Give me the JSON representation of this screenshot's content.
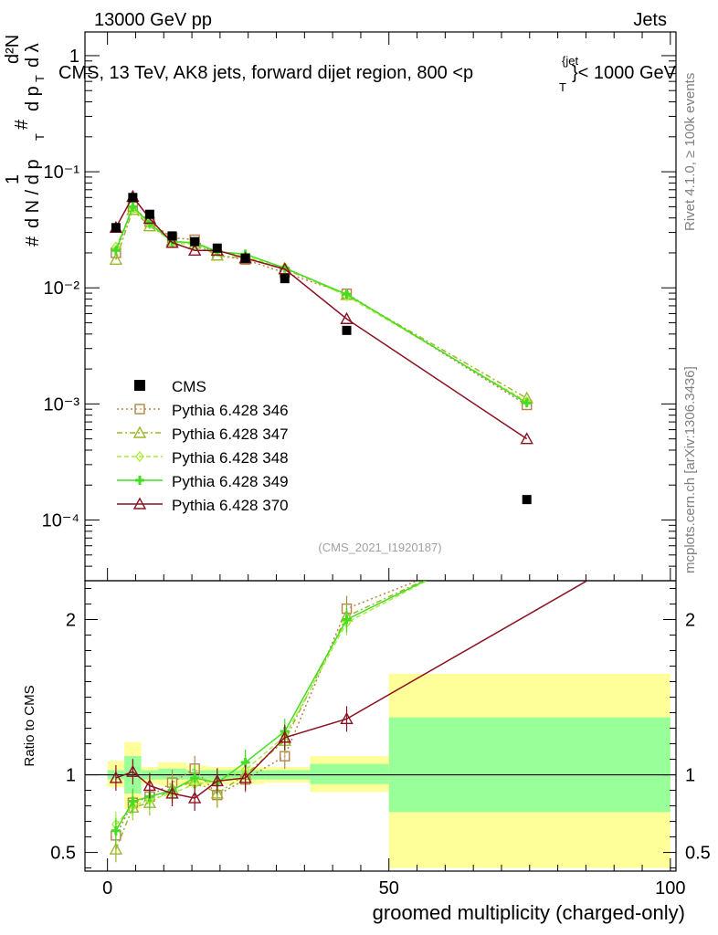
{
  "header": {
    "left": "13000 GeV pp",
    "right": "Jets"
  },
  "title": "CMS, 13 TeV, AK8 jets, forward dijet region, 800 <p",
  "title_sup": "{jet",
  "title_sub": "T",
  "title_tail": "}< 1000 GeV",
  "side_labels": {
    "rivet": "Rivet 4.1.0, ≥ 100k events",
    "mcplots": "mcplots.cern.ch [arXiv:1306.3436]"
  },
  "analysis_id": "(CMS_2021_I1920187)",
  "ylabel_main_parts": [
    "#",
    "1",
    "d N / d p",
    "T",
    "#",
    "d²N",
    "d p",
    "T",
    "d λ"
  ],
  "ylabel_ratio": "Ratio to CMS",
  "colors": {
    "data": "#000000",
    "p346": "#b5834a",
    "p347": "#9cb82c",
    "p348": "#a8f03a",
    "p349": "#44dd22",
    "p370": "#8b1022",
    "band_yellow": "#ffff99",
    "band_green": "#99ff99"
  },
  "chart_data": [
    {
      "type": "line",
      "yscale": "log",
      "xlabel": "groomed multiplicity (charged-only)",
      "ylabel": "1/(dN/dp_T) d²N/(dp_T dλ)",
      "xlim": [
        -4,
        101
      ],
      "ylim": [
        3e-05,
        1.6
      ],
      "yticks": [
        {
          "v": 0.0001,
          "label": "10⁻⁴"
        },
        {
          "v": 0.001,
          "label": "10⁻³"
        },
        {
          "v": 0.01,
          "label": "10⁻²"
        },
        {
          "v": 0.1,
          "label": "10⁻¹"
        },
        {
          "v": 1,
          "label": "1"
        }
      ],
      "legend_position": "center-left",
      "x": [
        1.5,
        4.5,
        7.5,
        11.5,
        15.5,
        19.5,
        24.5,
        31.5,
        42.5,
        74.5
      ],
      "data": {
        "name": "CMS",
        "values": [
          0.033,
          0.06,
          0.043,
          0.028,
          0.025,
          0.022,
          0.018,
          0.012,
          0.0043,
          0.00015
        ]
      },
      "series": [
        {
          "name": "Pythia 6.428 346",
          "key": "p346",
          "marker": "square",
          "dash": "2,3",
          "values": [
            0.02,
            0.05,
            0.037,
            0.027,
            0.026,
            0.019,
            0.0175,
            0.0135,
            0.0089,
            0.00098
          ]
        },
        {
          "name": "Pythia 6.428 347",
          "key": "p347",
          "marker": "triangle",
          "dash": "6,3,2,3",
          "values": [
            0.0175,
            0.047,
            0.034,
            0.0255,
            0.024,
            0.019,
            0.018,
            0.0145,
            0.0087,
            0.00112
          ]
        },
        {
          "name": "Pythia 6.428 348",
          "key": "p348",
          "marker": "diamond",
          "dash": "5,3",
          "values": [
            0.0225,
            0.048,
            0.0355,
            0.0245,
            0.0235,
            0.021,
            0.0185,
            0.015,
            0.0085,
            0.00105
          ]
        },
        {
          "name": "Pythia 6.428 349",
          "key": "p349",
          "marker": "cross",
          "dash": "",
          "values": [
            0.021,
            0.05,
            0.036,
            0.025,
            0.0245,
            0.0205,
            0.0195,
            0.0148,
            0.0088,
            0.00102
          ]
        },
        {
          "name": "Pythia 6.428 370",
          "key": "p370",
          "marker": "triangle",
          "dash": "",
          "values": [
            0.033,
            0.061,
            0.0395,
            0.0245,
            0.021,
            0.021,
            0.018,
            0.0145,
            0.0054,
            0.0005
          ]
        }
      ]
    },
    {
      "type": "line",
      "ylabel": "Ratio to CMS",
      "xlabel": "groomed multiplicity (charged-only)",
      "xlim": [
        -4,
        101
      ],
      "ylim": [
        0.38,
        2.25
      ],
      "xticks": [
        0,
        50,
        100
      ],
      "yticks": [
        0.5,
        1,
        2
      ],
      "bands": [
        {
          "x0": 0,
          "x1": 3,
          "yellow": [
            0.92,
            1.09
          ],
          "green": [
            0.97,
            1.03
          ]
        },
        {
          "x0": 3,
          "x1": 6,
          "yellow": [
            0.78,
            1.21
          ],
          "green": [
            0.88,
            1.12
          ]
        },
        {
          "x0": 6,
          "x1": 9,
          "yellow": [
            0.94,
            1.05
          ],
          "green": [
            0.97,
            1.03
          ]
        },
        {
          "x0": 9,
          "x1": 14,
          "yellow": [
            0.93,
            1.08
          ],
          "green": [
            0.97,
            1.04
          ]
        },
        {
          "x0": 14,
          "x1": 18,
          "yellow": [
            0.93,
            1.06
          ],
          "green": [
            0.97,
            1.03
          ]
        },
        {
          "x0": 18,
          "x1": 22,
          "yellow": [
            0.94,
            1.05
          ],
          "green": [
            0.97,
            1.03
          ]
        },
        {
          "x0": 22,
          "x1": 28,
          "yellow": [
            0.94,
            1.05
          ],
          "green": [
            0.97,
            1.03
          ]
        },
        {
          "x0": 28,
          "x1": 36,
          "yellow": [
            0.95,
            1.05
          ],
          "green": [
            0.97,
            1.03
          ]
        },
        {
          "x0": 36,
          "x1": 50,
          "yellow": [
            0.89,
            1.12
          ],
          "green": [
            0.94,
            1.07
          ]
        },
        {
          "x0": 50,
          "x1": 100,
          "yellow": [
            0.4,
            1.65
          ],
          "green": [
            0.76,
            1.37
          ]
        }
      ],
      "x": [
        1.5,
        4.5,
        7.5,
        11.5,
        15.5,
        19.5,
        24.5,
        31.5,
        42.5
      ],
      "series": [
        {
          "key": "p346",
          "values": [
            0.61,
            0.82,
            0.86,
            0.95,
            1.04,
            0.87,
            0.97,
            1.12,
            2.07
          ]
        },
        {
          "key": "p347",
          "values": [
            0.52,
            0.79,
            0.82,
            0.91,
            0.96,
            0.88,
            1.0,
            1.22,
            2.02
          ]
        },
        {
          "key": "p348",
          "values": [
            0.68,
            0.8,
            0.84,
            0.88,
            0.94,
            0.96,
            1.03,
            1.25,
            1.98
          ]
        },
        {
          "key": "p349",
          "values": [
            0.64,
            0.83,
            0.86,
            0.9,
            0.98,
            0.95,
            1.08,
            1.28,
            2.0
          ]
        },
        {
          "key": "p370",
          "values": [
            0.98,
            1.02,
            0.93,
            0.88,
            0.85,
            0.96,
            0.98,
            1.24,
            1.36
          ]
        }
      ],
      "offscale_trend": {
        "p346": 62,
        "p347": 62,
        "p348": 62,
        "p349": 62,
        "p370": 90
      }
    }
  ]
}
